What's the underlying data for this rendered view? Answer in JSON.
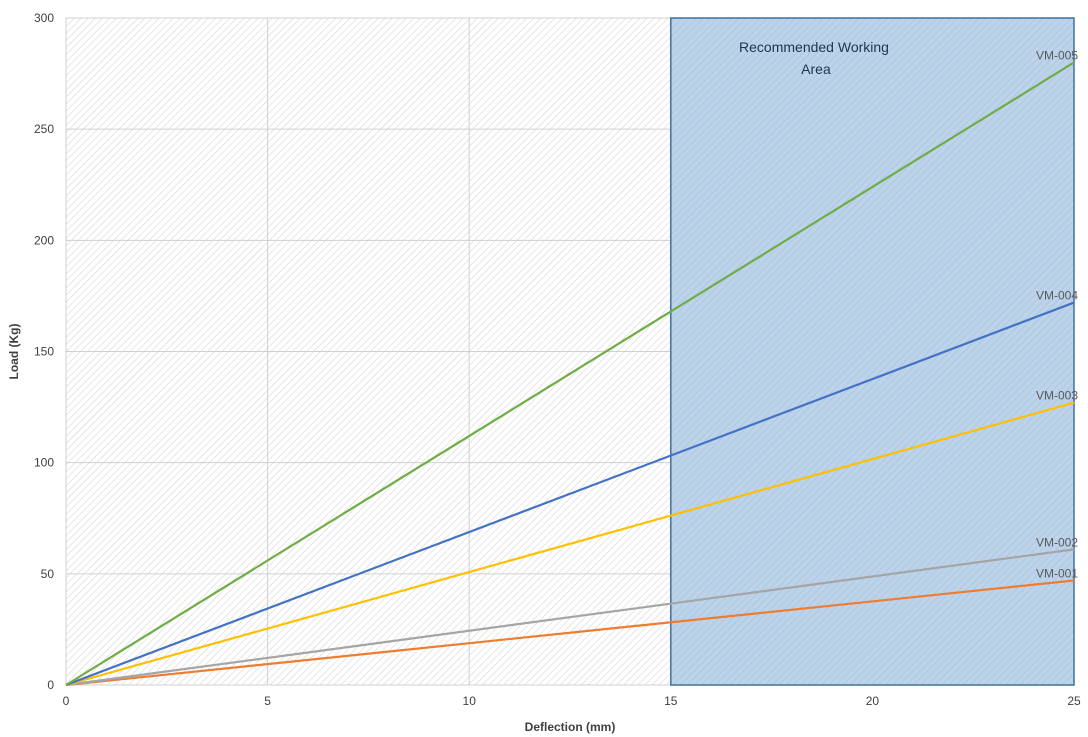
{
  "chart_data": {
    "type": "line",
    "xlabel": "Deflection (mm)",
    "ylabel": "Load (Kg)",
    "xlim": [
      0,
      25
    ],
    "ylim": [
      0,
      300
    ],
    "x_ticks": [
      0,
      5,
      10,
      15,
      20,
      25
    ],
    "y_ticks": [
      0,
      50,
      100,
      150,
      200,
      250,
      300
    ],
    "grid": true,
    "background_pattern": "diagonal-hatch",
    "series": [
      {
        "name": "VM-001",
        "color": "#ed7d31",
        "points": [
          [
            0,
            0
          ],
          [
            25,
            47
          ]
        ]
      },
      {
        "name": "VM-002",
        "color": "#a5a5a5",
        "points": [
          [
            0,
            0
          ],
          [
            25,
            61
          ]
        ]
      },
      {
        "name": "VM-003",
        "color": "#ffc000",
        "points": [
          [
            0,
            0
          ],
          [
            25,
            127
          ]
        ]
      },
      {
        "name": "VM-004",
        "color": "#4472c4",
        "points": [
          [
            0,
            0
          ],
          [
            25,
            172
          ]
        ]
      },
      {
        "name": "VM-005",
        "color": "#70ad47",
        "points": [
          [
            0,
            0
          ],
          [
            25,
            280
          ]
        ]
      }
    ],
    "highlight_region": {
      "label_lines": [
        "Recommended Working",
        "Area"
      ],
      "x_range": [
        15,
        25
      ],
      "y_range": [
        0,
        300
      ],
      "fill": "#9dc3e6",
      "border": "#41719c"
    }
  }
}
